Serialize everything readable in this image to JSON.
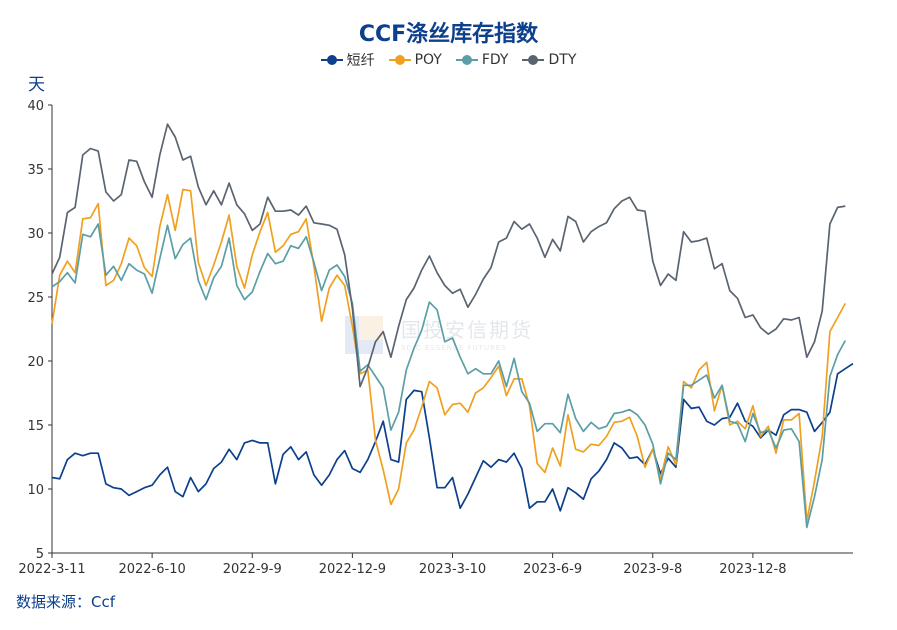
{
  "title": "CCF涤丝库存指数",
  "y_unit": "天",
  "source": "数据来源：Ccf",
  "watermark": {
    "text": "国投安信期货",
    "sub": "SDIC ESSENCE FUTURES"
  },
  "chart_data": {
    "type": "line",
    "title": "CCF涤丝库存指数",
    "xlabel": "",
    "ylabel": "天",
    "ylim": [
      5,
      40
    ],
    "yticks": [
      5,
      10,
      15,
      20,
      25,
      30,
      35,
      40
    ],
    "xtick_labels": [
      "2022-3-11",
      "2022-6-10",
      "2022-9-9",
      "2022-12-9",
      "2023-3-10",
      "2023-6-9",
      "2023-9-8",
      "2023-12-8"
    ],
    "xtick_index": [
      0,
      13,
      26,
      39,
      52,
      65,
      78,
      91
    ],
    "grid": false,
    "legend_position": "top-center",
    "series": [
      {
        "name": "短纤",
        "color": "#0c3f8c",
        "values": [
          10.9,
          10.8,
          12.3,
          12.8,
          12.6,
          12.8,
          12.8,
          10.4,
          10.1,
          10.0,
          9.5,
          9.8,
          10.1,
          10.3,
          11.1,
          11.7,
          9.8,
          9.4,
          10.9,
          9.8,
          10.4,
          11.6,
          12.1,
          13.1,
          12.3,
          13.6,
          13.8,
          13.6,
          13.6,
          10.4,
          12.7,
          13.3,
          12.3,
          12.9,
          11.1,
          10.3,
          11.1,
          12.3,
          13.0,
          11.6,
          11.3,
          12.3,
          13.7,
          15.3,
          12.3,
          12.1,
          17.0,
          17.7,
          17.6,
          14.0,
          10.1,
          10.1,
          10.9,
          8.5,
          9.6,
          10.9,
          12.2,
          11.7,
          12.3,
          12.1,
          12.8,
          11.6,
          8.5,
          9.0,
          9.0,
          10.0,
          8.3,
          10.1,
          9.7,
          9.2,
          10.8,
          11.4,
          12.3,
          13.6,
          13.2,
          12.4,
          12.5,
          11.9,
          13.1,
          11.2,
          12.4,
          11.7,
          17.0,
          16.3,
          16.4,
          15.3,
          15.0,
          15.5,
          15.6,
          16.7,
          15.3,
          14.9,
          14.0,
          14.6,
          14.2,
          15.8,
          16.2,
          16.2,
          16.0,
          14.5,
          15.2,
          16.0,
          19.0,
          19.4,
          19.8
        ]
      },
      {
        "name": "POY",
        "color": "#f0a020",
        "values": [
          22.9,
          26.7,
          27.8,
          26.9,
          31.1,
          31.2,
          32.3,
          25.9,
          26.3,
          27.6,
          29.6,
          29.0,
          27.3,
          26.6,
          30.5,
          33.0,
          30.2,
          33.4,
          33.3,
          27.7,
          25.9,
          27.5,
          29.3,
          31.4,
          27.4,
          25.7,
          28.3,
          30.1,
          31.6,
          28.5,
          29.0,
          29.9,
          30.1,
          31.1,
          27.4,
          23.1,
          25.7,
          26.7,
          25.9,
          22.7,
          19.0,
          19.3,
          13.8,
          11.5,
          8.8,
          10.0,
          13.6,
          14.6,
          16.4,
          18.4,
          17.9,
          15.8,
          16.6,
          16.7,
          16.0,
          17.5,
          17.9,
          18.7,
          19.6,
          17.3,
          18.6,
          18.6,
          16.5,
          12.0,
          11.3,
          13.2,
          11.8,
          15.8,
          13.1,
          12.9,
          13.5,
          13.4,
          14.1,
          15.2,
          15.3,
          15.6,
          14.1,
          11.7,
          13.1,
          10.8,
          13.3,
          11.9,
          18.4,
          17.9,
          19.3,
          19.9,
          16.1,
          18.1,
          15.0,
          15.3,
          14.7,
          16.5,
          14.1,
          14.9,
          12.8,
          15.4,
          15.4,
          15.9,
          7.5,
          10.6,
          14.1,
          22.3,
          23.4,
          24.5
        ]
      },
      {
        "name": "FDY",
        "color": "#5b9ea6",
        "values": [
          25.8,
          26.2,
          26.9,
          26.1,
          29.9,
          29.7,
          30.7,
          26.7,
          27.4,
          26.3,
          27.6,
          27.1,
          26.8,
          25.3,
          28.0,
          30.6,
          28.0,
          29.1,
          29.6,
          26.3,
          24.8,
          26.5,
          27.4,
          29.6,
          25.9,
          24.8,
          25.4,
          27.0,
          28.4,
          27.6,
          27.8,
          29.0,
          28.8,
          29.7,
          27.7,
          25.5,
          27.1,
          27.5,
          26.6,
          24.5,
          19.2,
          19.7,
          18.8,
          17.9,
          14.6,
          16.0,
          19.3,
          21.0,
          22.4,
          24.6,
          24.0,
          21.5,
          21.8,
          20.3,
          19.0,
          19.4,
          19.0,
          19.0,
          20.0,
          18.0,
          20.2,
          17.6,
          16.7,
          14.5,
          15.1,
          15.1,
          14.4,
          17.4,
          15.5,
          14.5,
          15.2,
          14.7,
          14.9,
          15.9,
          16.0,
          16.2,
          15.8,
          15.0,
          13.5,
          10.4,
          12.8,
          12.3,
          18.1,
          18.1,
          18.5,
          18.9,
          17.1,
          18.1,
          15.3,
          15.1,
          13.7,
          15.9,
          14.4,
          14.6,
          13.2,
          14.6,
          14.7,
          13.7,
          7.0,
          9.4,
          12.3,
          18.8,
          20.5,
          21.6
        ]
      },
      {
        "name": "DTY",
        "color": "#5a6470",
        "values": [
          26.8,
          28.1,
          31.6,
          32.0,
          36.1,
          36.6,
          36.4,
          33.2,
          32.5,
          33.0,
          35.7,
          35.6,
          34.0,
          32.8,
          36.1,
          38.5,
          37.5,
          35.7,
          36.0,
          33.6,
          32.2,
          33.3,
          32.2,
          33.9,
          32.2,
          31.5,
          30.2,
          30.7,
          32.8,
          31.7,
          31.7,
          31.8,
          31.4,
          32.1,
          30.8,
          30.7,
          30.6,
          30.3,
          28.3,
          24.1,
          18.0,
          19.5,
          21.5,
          22.3,
          20.3,
          22.7,
          24.8,
          25.7,
          27.1,
          28.2,
          26.9,
          25.9,
          25.3,
          25.6,
          24.2,
          25.2,
          26.4,
          27.3,
          29.3,
          29.6,
          30.9,
          30.3,
          30.7,
          29.6,
          28.1,
          29.5,
          28.6,
          31.3,
          30.9,
          29.3,
          30.1,
          30.5,
          30.8,
          31.9,
          32.5,
          32.8,
          31.8,
          31.7,
          27.8,
          25.9,
          26.8,
          26.3,
          30.1,
          29.3,
          29.4,
          29.6,
          27.2,
          27.6,
          25.5,
          24.9,
          23.4,
          23.6,
          22.6,
          22.1,
          22.5,
          23.3,
          23.2,
          23.4,
          20.3,
          21.5,
          23.9,
          30.7,
          32.0,
          32.1
        ]
      }
    ]
  }
}
